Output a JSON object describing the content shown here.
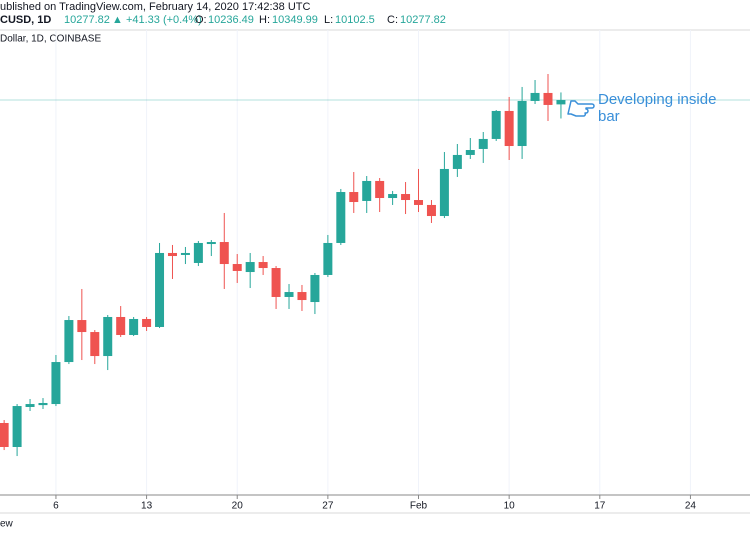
{
  "header": {
    "published": "ublished on TradingView.com, February 14, 2020 17:42:38 UTC",
    "symbol": "CUSD, 1D",
    "change": "+41.33 (+0.4%)",
    "o_label": "O:",
    "h_label": "H:",
    "l_label": "L:",
    "c_label": "C:",
    "subtitle": "Dollar, 1D, COINBASE"
  },
  "footer": "ew",
  "chart_data": {
    "type": "candlestick",
    "annotation": [
      "Developing inside",
      "bar"
    ],
    "x": [
      2,
      3,
      4,
      5,
      6,
      7,
      8,
      9,
      10,
      11,
      12,
      13,
      14,
      15,
      16,
      17,
      18,
      19,
      20,
      21,
      22,
      23,
      24,
      25,
      26,
      27,
      28,
      29,
      30,
      31,
      32,
      33,
      34,
      35,
      36,
      37,
      38,
      39,
      40,
      41,
      42,
      43,
      44,
      45
    ],
    "open": [
      7210,
      6982,
      7362,
      7380,
      7390,
      7789,
      8188,
      8074,
      7846,
      8217,
      8046,
      8198,
      8122,
      8825,
      8806,
      8730,
      8910,
      8929,
      8720,
      8644,
      8739,
      8682,
      8407,
      8454,
      8359,
      8616,
      8920,
      9404,
      9319,
      9509,
      9347,
      9385,
      9328,
      9281,
      9176,
      9623,
      9756,
      9813,
      9908,
      10174,
      9841,
      10269,
      10345,
      10236.49
    ],
    "high": [
      7238,
      7390,
      7438,
      7447,
      7856,
      8226,
      8483,
      8093,
      8236,
      8321,
      8217,
      8217,
      8920,
      8901,
      8882,
      8939,
      8948,
      9205,
      8815,
      8825,
      8796,
      8701,
      8530,
      8521,
      8635,
      8996,
      9433,
      9594,
      9556,
      9537,
      9414,
      9499,
      9623,
      9328,
      9784,
      9860,
      9917,
      9974,
      10183,
      10307,
      10402,
      10468,
      10525,
      10349.99
    ],
    "low": [
      6953,
      6896,
      7324,
      7343,
      7371,
      7770,
      7808,
      7770,
      7713,
      8027,
      8036,
      8084,
      8112,
      8578,
      8720,
      8701,
      8796,
      8483,
      8540,
      8492,
      8616,
      8293,
      8293,
      8274,
      8245,
      8597,
      8901,
      9205,
      9205,
      9214,
      9281,
      9195,
      9214,
      9110,
      9157,
      9547,
      9718,
      9680,
      9889,
      9708,
      9718,
      10240,
      10079,
      10102.5
    ],
    "close": [
      6982,
      7371,
      7390,
      7400,
      7789,
      8188,
      8074,
      7846,
      8217,
      8046,
      8198,
      8122,
      8825,
      8796,
      8825,
      8920,
      8929,
      8720,
      8654,
      8739,
      8682,
      8407,
      8454,
      8378,
      8616,
      8920,
      9404,
      9309,
      9509,
      9347,
      9385,
      9328,
      9281,
      9176,
      9623,
      9756,
      9803,
      9908,
      10174,
      9841,
      10269,
      10345,
      10231,
      10277.82
    ],
    "up_color": "#26a69a",
    "down_color": "#ef5350",
    "annotation_color": "#3a8fd9",
    "xlim": [
      1.68,
      59.6
    ],
    "ylim": [
      6526,
      10943
    ],
    "xticks": [
      6,
      13,
      20,
      27,
      {
        "value": 34,
        "label": "Feb"
      },
      {
        "value": 41,
        "label": "10"
      },
      {
        "value": 48,
        "label": "17"
      },
      {
        "value": 55,
        "label": "24"
      }
    ],
    "grid": true
  }
}
